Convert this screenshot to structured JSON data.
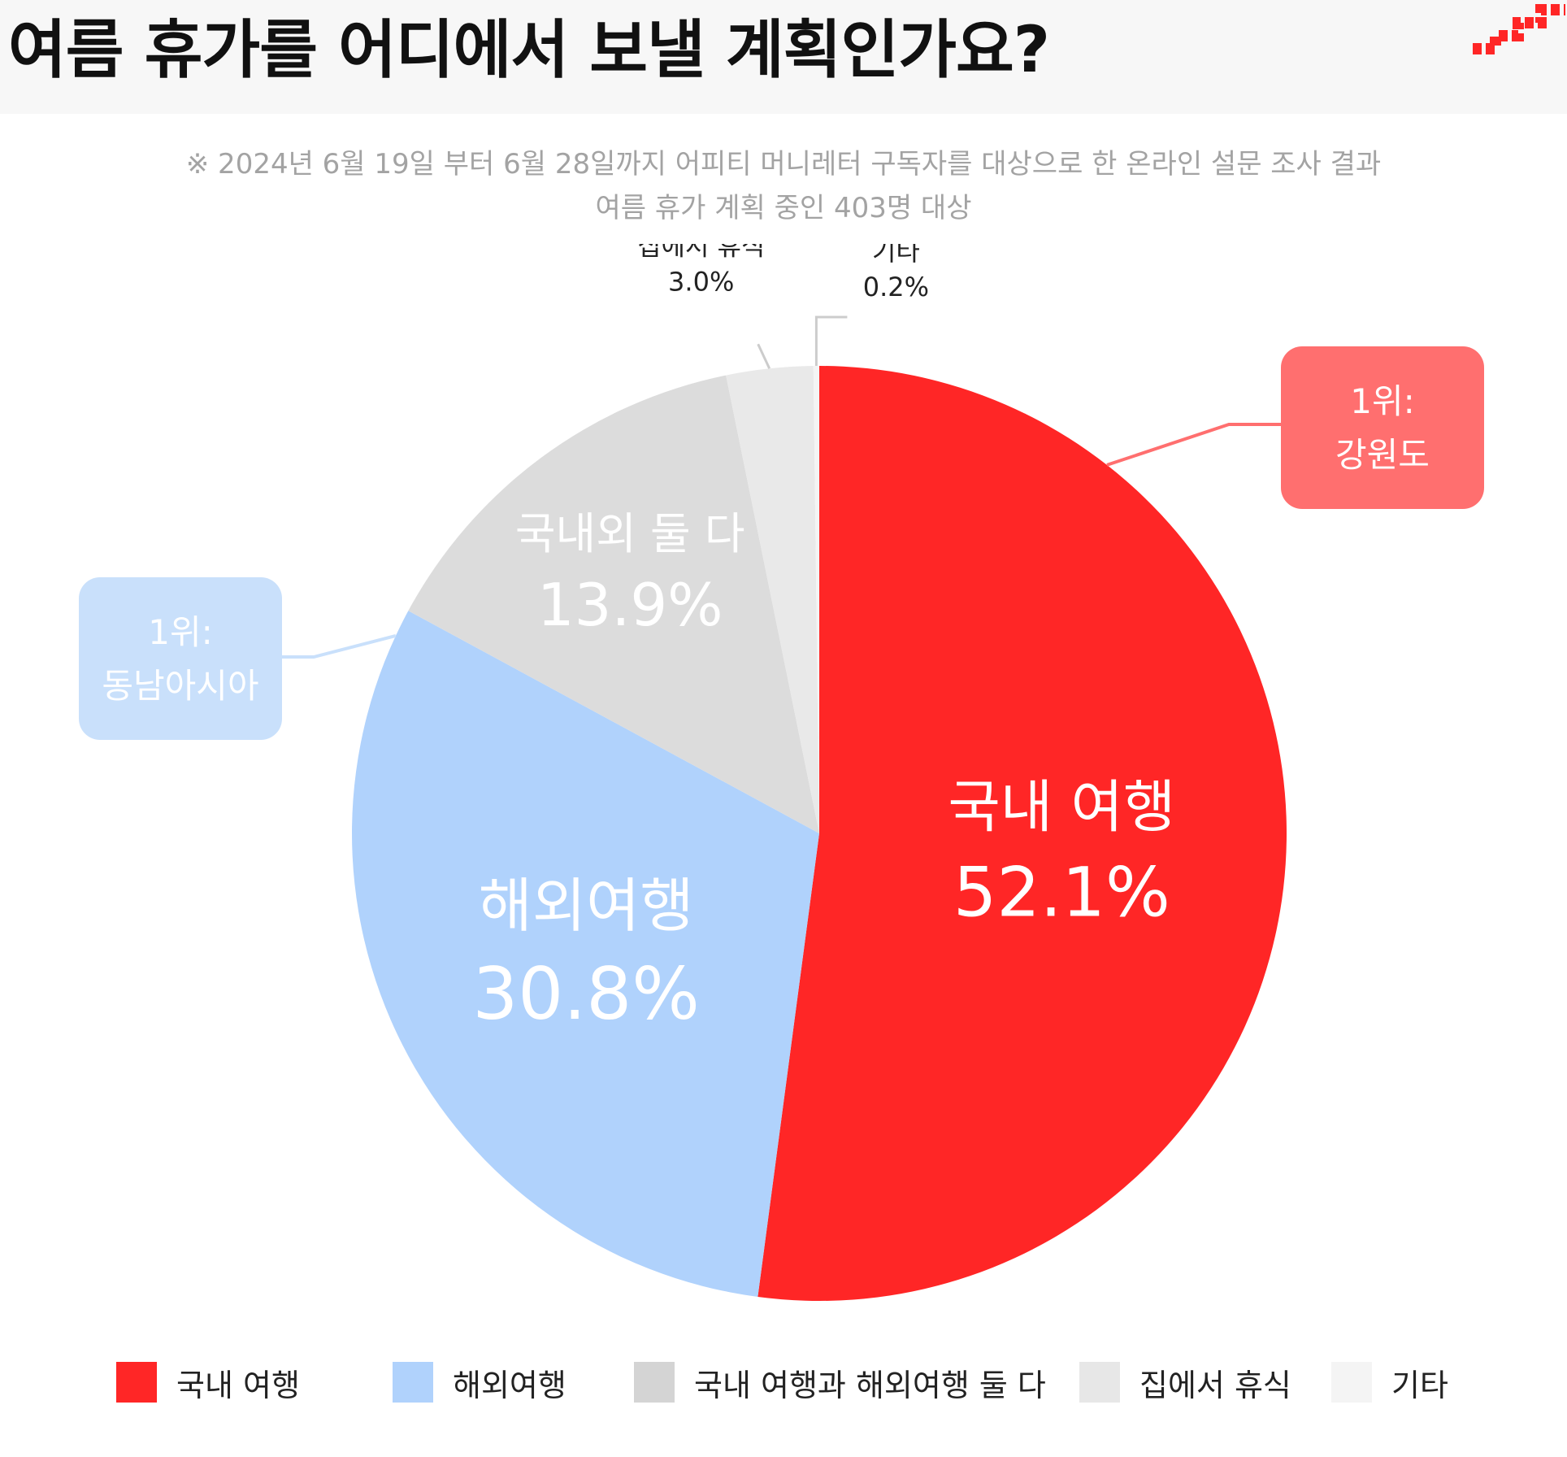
{
  "title": "여름 휴가를 어디에서 보낼 계획인가요?",
  "note": {
    "line1": "※ 2024년 6월 19일 부터 6월 28일까지 어피티 머니레터 구독자를 대상으로 한 온라인 설문 조사 결과",
    "line2": "여름 휴가 계획 중인 403명 대상"
  },
  "chart_data": {
    "type": "pie",
    "title": "여름 휴가를 어디에서 보낼 계획인가요?",
    "slices": [
      {
        "label": "국내 여행",
        "value": 52.1,
        "display_value": "52.1%",
        "color": "#ff2626",
        "text_color": "#ffffff",
        "legend": "국내 여행"
      },
      {
        "label": "해외여행",
        "value": 30.8,
        "display_value": "30.8%",
        "color": "#b0d2fc",
        "text_color": "#ffffff",
        "legend": "해외여행"
      },
      {
        "label": "국내외 둘 다",
        "value": 13.9,
        "display_value": "13.9%",
        "color": "#dcdcdc",
        "text_color": "#ffffff",
        "legend": "국내 여행과 해외여행 둘 다"
      },
      {
        "label": "집에서 휴식",
        "value": 3.0,
        "display_value": "3.0%",
        "color": "#e9e9e9",
        "text_color": "#222222",
        "legend": "집에서 휴식"
      },
      {
        "label": "기타",
        "value": 0.2,
        "display_value": "0.2%",
        "color": "#f4f4f4",
        "text_color": "#222222",
        "legend": "기타"
      }
    ],
    "callouts": [
      {
        "slice": "국내 여행",
        "line1": "1위:",
        "line2": "강원도",
        "color": "#ff6f6f"
      },
      {
        "slice": "해외여행",
        "line1": "1위:",
        "line2": "동남아시아",
        "color": "#c9e0fb"
      }
    ],
    "legend_position": "bottom"
  },
  "legend": [
    {
      "label": "국내 여행",
      "color": "#ff2626"
    },
    {
      "label": "해외여행",
      "color": "#b0d2fc"
    },
    {
      "label": "국내 여행과 해외여행 둘 다",
      "color": "#d4d4d4"
    },
    {
      "label": "집에서 휴식",
      "color": "#e7e7e7"
    },
    {
      "label": "기타",
      "color": "#f4f4f4"
    }
  ],
  "brand_color": "#ff2626"
}
